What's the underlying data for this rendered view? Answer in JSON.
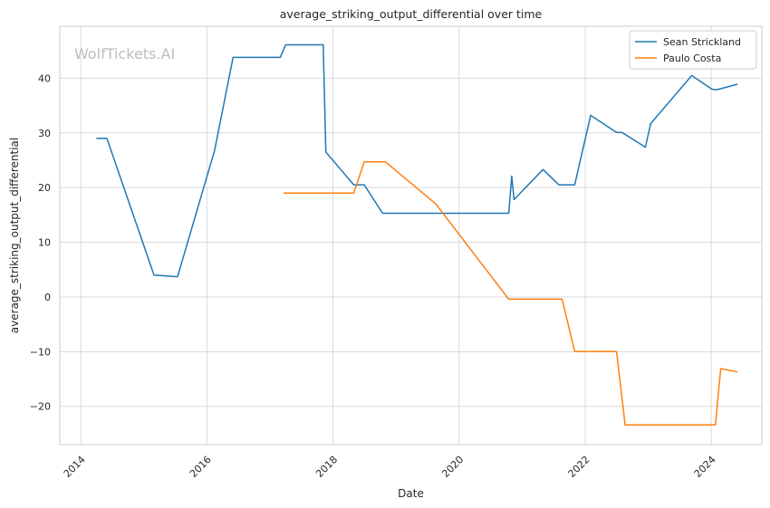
{
  "chart_data": {
    "type": "line",
    "title": "average_striking_output_differential over time",
    "xlabel": "Date",
    "ylabel": "average_striking_output_differential",
    "watermark": "WolfTickets.AI",
    "xlim": [
      "2013-09-01",
      "2024-10-20"
    ],
    "ylim": [
      -27,
      49.5
    ],
    "x_ticks": [
      "2014",
      "2016",
      "2018",
      "2020",
      "2022",
      "2024"
    ],
    "y_ticks": [
      -20,
      -10,
      0,
      10,
      20,
      30,
      40
    ],
    "grid": true,
    "legend_position": "top-right",
    "series": [
      {
        "name": "Sean Strickland",
        "color": "#1f77b4",
        "points": [
          [
            "2014-04-01",
            29.0
          ],
          [
            "2014-06-01",
            29.0
          ],
          [
            "2015-03-01",
            4.0
          ],
          [
            "2015-07-15",
            3.7
          ],
          [
            "2016-02-15",
            26.8
          ],
          [
            "2016-06-01",
            43.8
          ],
          [
            "2017-03-01",
            43.8
          ],
          [
            "2017-04-01",
            46.1
          ],
          [
            "2017-11-05",
            46.1
          ],
          [
            "2017-11-20",
            26.5
          ],
          [
            "2018-05-01",
            20.5
          ],
          [
            "2018-07-01",
            20.5
          ],
          [
            "2018-10-15",
            15.3
          ],
          [
            "2020-10-15",
            15.3
          ],
          [
            "2020-11-01",
            22.1
          ],
          [
            "2020-11-15",
            17.8
          ],
          [
            "2021-05-01",
            23.3
          ],
          [
            "2021-08-01",
            20.5
          ],
          [
            "2021-11-01",
            20.5
          ],
          [
            "2022-02-01",
            33.2
          ],
          [
            "2022-07-01",
            30.1
          ],
          [
            "2022-08-01",
            30.1
          ],
          [
            "2022-12-15",
            27.4
          ],
          [
            "2023-01-15",
            31.7
          ],
          [
            "2023-09-10",
            40.5
          ],
          [
            "2024-01-05",
            38.0
          ],
          [
            "2024-02-01",
            37.9
          ],
          [
            "2024-06-01",
            38.9
          ]
        ]
      },
      {
        "name": "Paulo Costa",
        "color": "#ff7f0e",
        "points": [
          [
            "2017-03-20",
            19.0
          ],
          [
            "2018-05-01",
            19.0
          ],
          [
            "2018-07-01",
            24.7
          ],
          [
            "2018-11-01",
            24.7
          ],
          [
            "2019-08-20",
            17.0
          ],
          [
            "2020-10-15",
            -0.4
          ],
          [
            "2021-08-20",
            -0.4
          ],
          [
            "2021-11-01",
            -10.0
          ],
          [
            "2022-07-01",
            -10.0
          ],
          [
            "2022-08-20",
            -23.4
          ],
          [
            "2024-01-25",
            -23.4
          ],
          [
            "2024-02-25",
            -13.1
          ],
          [
            "2024-06-01",
            -13.7
          ]
        ]
      }
    ]
  }
}
